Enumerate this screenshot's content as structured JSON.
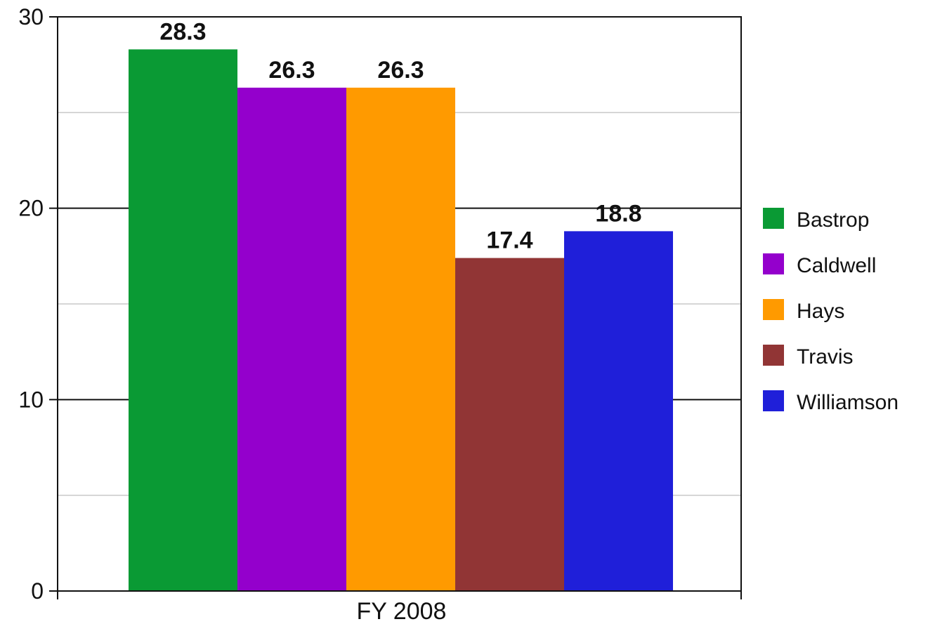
{
  "chart_data": {
    "type": "bar",
    "categories": [
      "FY 2008"
    ],
    "series": [
      {
        "name": "Bastrop",
        "values": [
          28.3
        ],
        "color": "#0a9a34"
      },
      {
        "name": "Caldwell",
        "values": [
          26.3
        ],
        "color": "#9400cc"
      },
      {
        "name": "Hays",
        "values": [
          26.3
        ],
        "color": "#ff9a00"
      },
      {
        "name": "Travis",
        "values": [
          17.4
        ],
        "color": "#913535"
      },
      {
        "name": "Williamson",
        "values": [
          18.8
        ],
        "color": "#1f1fd9"
      }
    ],
    "data_labels": [
      "28.3",
      "26.3",
      "26.3",
      "17.4",
      "18.8"
    ],
    "yticks": [
      "0",
      "10",
      "20",
      "30"
    ],
    "ylim": [
      0,
      30
    ],
    "grid": true,
    "legend_position": "right",
    "title": "",
    "xlabel": "",
    "ylabel": ""
  }
}
